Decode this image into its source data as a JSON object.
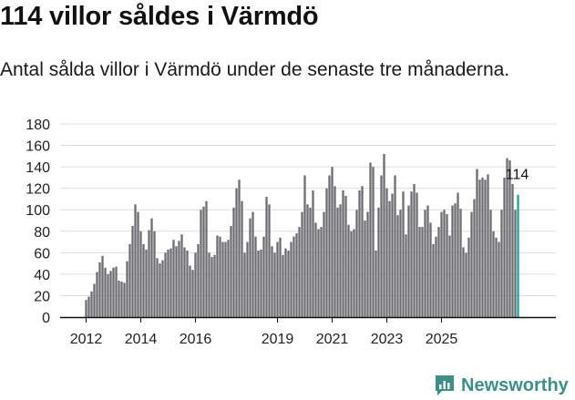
{
  "title": "114 villor såldes i Värmdö",
  "subtitle": "Antal sålda villor i Värmdö under de senaste tre månaderna.",
  "brand": {
    "name": "Newsworthy",
    "icon": "newsworthy-logo-icon",
    "color": "#3d8f8a"
  },
  "colors": {
    "bar": "#6d6d71",
    "highlight": "#1aa39a",
    "grid": "#dddddd",
    "axis": "#111111"
  },
  "chart_data": {
    "type": "bar",
    "title": "114 villor såldes i Värmdö",
    "xlabel": "",
    "ylabel": "",
    "ylim": [
      0,
      180
    ],
    "yticks": [
      0,
      20,
      40,
      60,
      80,
      100,
      120,
      140,
      160,
      180
    ],
    "xticks": [
      {
        "label": "2012",
        "index": 0
      },
      {
        "label": "2014",
        "index": 20
      },
      {
        "label": "2016",
        "index": 40
      },
      {
        "label": "2019",
        "index": 70
      },
      {
        "label": "2021",
        "index": 90
      },
      {
        "label": "2023",
        "index": 110
      },
      {
        "label": "2025",
        "index": 130
      }
    ],
    "highlight_label": "114",
    "values": [
      16,
      19,
      24,
      31,
      42,
      51,
      57,
      46,
      40,
      43,
      46,
      47,
      34,
      33,
      32,
      52,
      68,
      85,
      105,
      98,
      80,
      68,
      63,
      81,
      92,
      80,
      55,
      50,
      53,
      60,
      63,
      64,
      72,
      66,
      71,
      77,
      65,
      62,
      48,
      44,
      60,
      68,
      100,
      103,
      108,
      60,
      56,
      58,
      76,
      75,
      70,
      70,
      72,
      85,
      102,
      120,
      128,
      108,
      60,
      70,
      92,
      98,
      75,
      62,
      63,
      75,
      112,
      105,
      66,
      60,
      70,
      74,
      58,
      64,
      62,
      70,
      75,
      78,
      84,
      98,
      132,
      105,
      102,
      118,
      88,
      82,
      84,
      98,
      120,
      132,
      140,
      122,
      102,
      105,
      118,
      113,
      86,
      80,
      82,
      100,
      118,
      122,
      90,
      98,
      144,
      140,
      62,
      102,
      132,
      152,
      120,
      108,
      115,
      132,
      95,
      100,
      117,
      77,
      104,
      117,
      124,
      116,
      84,
      84,
      100,
      104,
      88,
      68,
      75,
      84,
      98,
      100,
      96,
      76,
      104,
      106,
      116,
      101,
      65,
      60,
      74,
      98,
      110,
      138,
      128,
      130,
      128,
      133,
      100,
      80,
      74,
      70,
      100,
      130,
      148,
      146,
      124,
      100,
      114
    ]
  }
}
